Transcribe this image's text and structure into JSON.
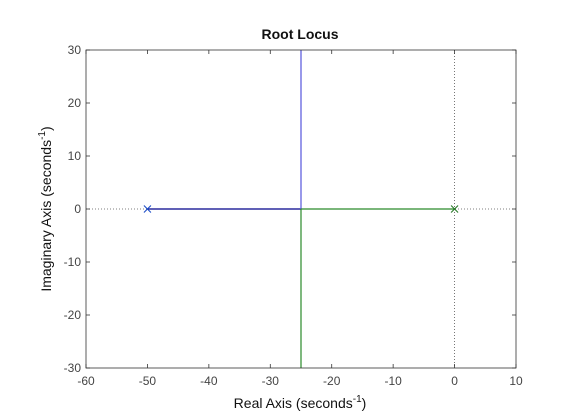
{
  "chart_data": {
    "type": "line",
    "title": "Root Locus",
    "xlabel": {
      "main": "Real Axis (seconds",
      "sup": "-1",
      "close": ")"
    },
    "ylabel": {
      "main": "Imaginary Axis (seconds",
      "sup": "-1",
      "close": ")"
    },
    "xlim": [
      -60,
      10
    ],
    "ylim": [
      -30,
      30
    ],
    "xticks": [
      -60,
      -50,
      -40,
      -30,
      -20,
      -10,
      0,
      10
    ],
    "yticks": [
      -30,
      -20,
      -10,
      0,
      10,
      20,
      30
    ],
    "poles": [
      {
        "x": -50,
        "y": 0,
        "color": "#1f4fc8"
      },
      {
        "x": 0,
        "y": 0,
        "color": "#2a7a2a"
      }
    ],
    "series": [
      {
        "color": "#00008b",
        "x": [
          -50,
          -25
        ],
        "y": [
          0,
          0
        ]
      },
      {
        "color": "#5555dd",
        "x": [
          -25,
          -25
        ],
        "y": [
          0,
          30
        ]
      },
      {
        "color": "#2a8a2a",
        "x": [
          0,
          -25
        ],
        "y": [
          0,
          0
        ]
      },
      {
        "color": "#2a8a2a",
        "x": [
          -25,
          -25
        ],
        "y": [
          0,
          -30
        ]
      }
    ],
    "reference_lines": {
      "real_axis_y": 0,
      "imag_axis_x": 0
    }
  }
}
